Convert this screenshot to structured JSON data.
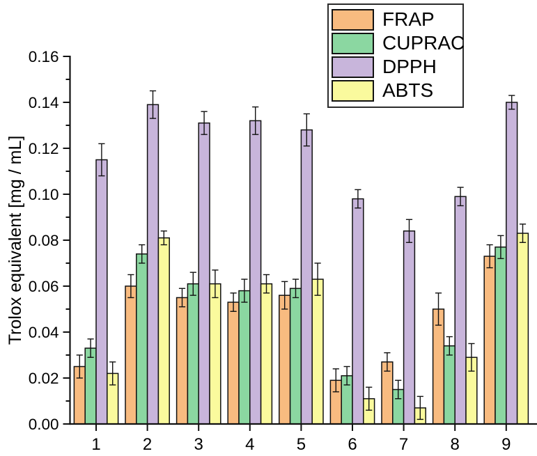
{
  "chart_data": {
    "type": "bar",
    "title": "",
    "xlabel": "",
    "ylabel": "Trolox equivalent [mg / mL]",
    "ylim": [
      0,
      0.16
    ],
    "ytick_step": 0.02,
    "yminor_step": 0.01,
    "ytick_decimals": 2,
    "grid": "off",
    "legend_position": "top-right",
    "error_bars": "symmetric",
    "categories": [
      "1",
      "2",
      "3",
      "4",
      "5",
      "6",
      "7",
      "8",
      "9"
    ],
    "series": [
      {
        "name": "FRAP",
        "color": "#F8BB80",
        "values": [
          0.025,
          0.06,
          0.055,
          0.053,
          0.056,
          0.019,
          0.027,
          0.05,
          0.073
        ],
        "errors": [
          0.005,
          0.005,
          0.004,
          0.004,
          0.006,
          0.005,
          0.004,
          0.007,
          0.005
        ]
      },
      {
        "name": "CUPRAC",
        "color": "#8BD7A1",
        "values": [
          0.033,
          0.074,
          0.061,
          0.058,
          0.059,
          0.021,
          0.015,
          0.034,
          0.077
        ],
        "errors": [
          0.004,
          0.004,
          0.005,
          0.005,
          0.004,
          0.004,
          0.004,
          0.004,
          0.005
        ]
      },
      {
        "name": "DPPH",
        "color": "#C8B5DB",
        "values": [
          0.115,
          0.139,
          0.131,
          0.132,
          0.128,
          0.098,
          0.084,
          0.099,
          0.14
        ],
        "errors": [
          0.007,
          0.006,
          0.005,
          0.006,
          0.007,
          0.004,
          0.005,
          0.004,
          0.003
        ]
      },
      {
        "name": "ABTS",
        "color": "#FAFA9D",
        "values": [
          0.022,
          0.081,
          0.061,
          0.061,
          0.063,
          0.011,
          0.007,
          0.029,
          0.083
        ],
        "errors": [
          0.005,
          0.003,
          0.006,
          0.004,
          0.007,
          0.005,
          0.005,
          0.006,
          0.004
        ]
      }
    ]
  }
}
